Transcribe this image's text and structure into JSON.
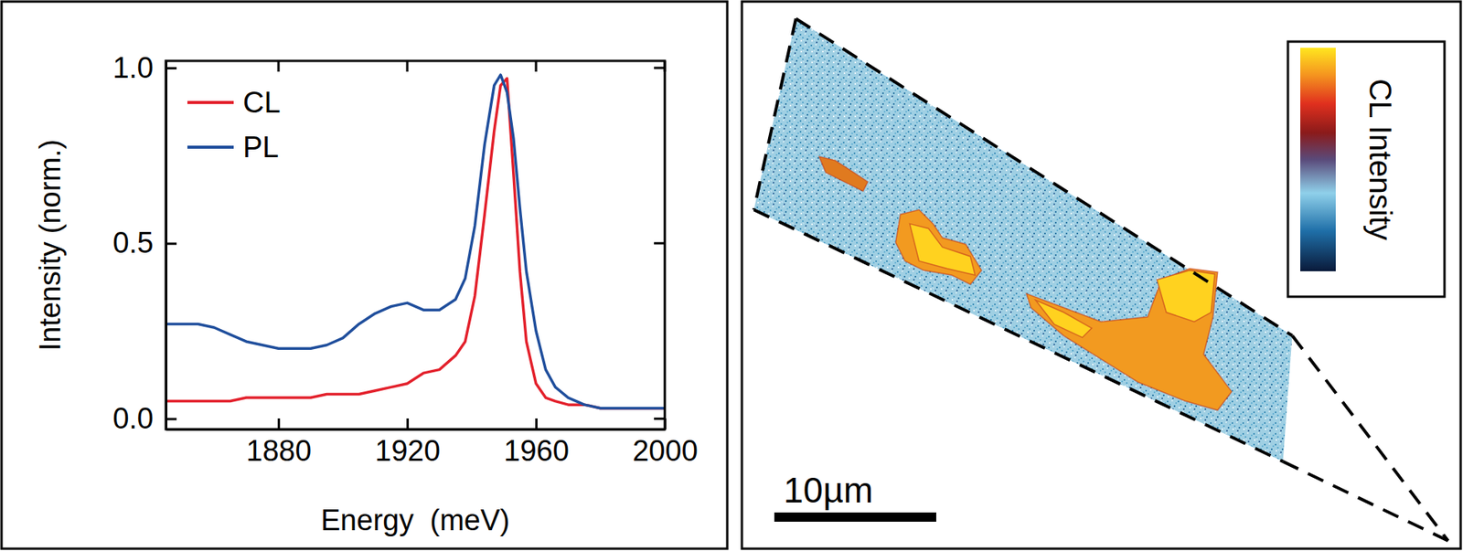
{
  "chart_data": [
    {
      "type": "line",
      "x_label": "Energy  (meV)",
      "y_label": "Intensity (norm.)",
      "x": [
        1845,
        1850,
        1855,
        1860,
        1865,
        1870,
        1875,
        1880,
        1885,
        1890,
        1895,
        1900,
        1905,
        1910,
        1915,
        1920,
        1925,
        1930,
        1935,
        1938,
        1941,
        1944,
        1947,
        1949,
        1951,
        1953,
        1955,
        1957,
        1960,
        1963,
        1966,
        1970,
        1975,
        1980,
        1990,
        2000
      ],
      "series": [
        {
          "name": "CL",
          "color": "#e3202b",
          "values": [
            0.05,
            0.05,
            0.05,
            0.05,
            0.05,
            0.06,
            0.06,
            0.06,
            0.06,
            0.06,
            0.07,
            0.07,
            0.07,
            0.08,
            0.09,
            0.1,
            0.13,
            0.14,
            0.18,
            0.22,
            0.35,
            0.58,
            0.82,
            0.95,
            0.97,
            0.7,
            0.42,
            0.22,
            0.1,
            0.06,
            0.05,
            0.04,
            0.04,
            0.03,
            0.03,
            0.03
          ]
        },
        {
          "name": "PL",
          "color": "#1f4e9c",
          "values": [
            0.27,
            0.27,
            0.27,
            0.26,
            0.24,
            0.22,
            0.21,
            0.2,
            0.2,
            0.2,
            0.21,
            0.23,
            0.27,
            0.3,
            0.32,
            0.33,
            0.31,
            0.31,
            0.34,
            0.4,
            0.55,
            0.78,
            0.95,
            0.98,
            0.93,
            0.8,
            0.6,
            0.42,
            0.25,
            0.14,
            0.09,
            0.06,
            0.04,
            0.03,
            0.03,
            0.03
          ]
        }
      ],
      "xlim": [
        1845,
        2000
      ],
      "xticks": [
        1880,
        1920,
        1960,
        2000
      ],
      "ylim": [
        -0.03,
        1.02
      ],
      "yticks": [
        {
          "value": 0,
          "label": "0.0"
        },
        {
          "value": 0.5,
          "label": "0.5"
        },
        {
          "value": 1,
          "label": "1.0"
        }
      ],
      "legend": "upper left"
    },
    {
      "type": "image",
      "colorbar": {
        "label": "CL Intensity"
      },
      "annotations": [
        "10µm"
      ]
    }
  ]
}
